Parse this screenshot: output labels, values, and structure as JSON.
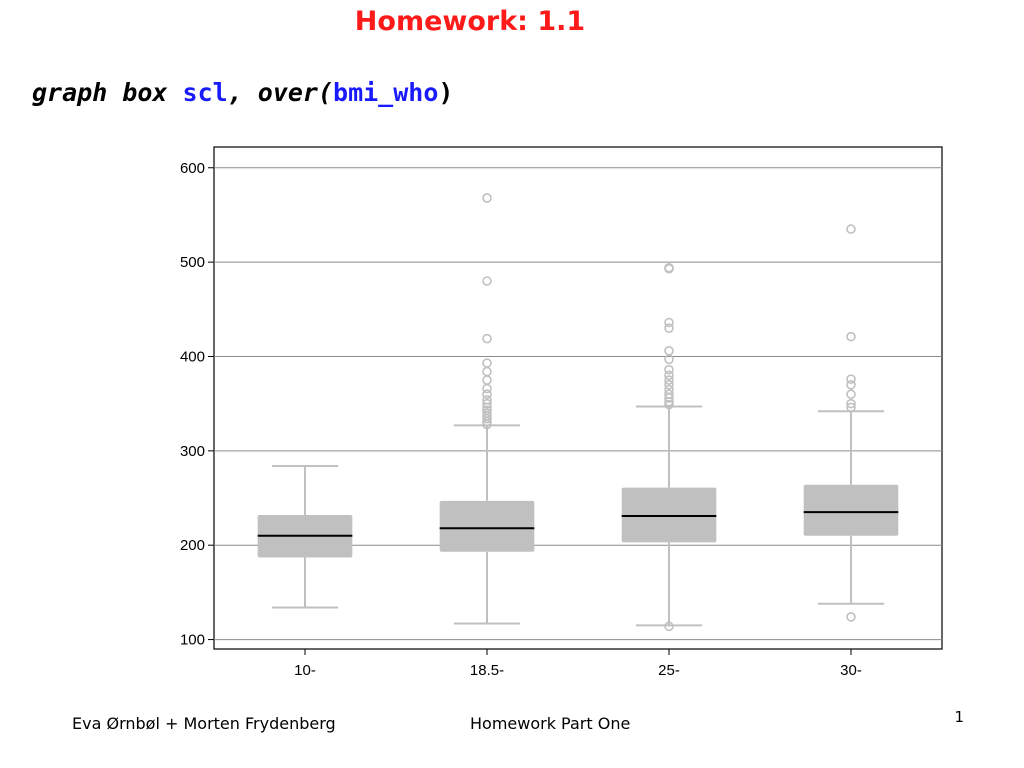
{
  "slide": {
    "title": "Homework: 1.1",
    "command": {
      "part1": "graph box ",
      "var": "scl",
      "part2": ", over(",
      "group": "bmi_who",
      "part3": ")"
    },
    "footer_left": "Eva Ørnbøl + Morten Frydenberg",
    "footer_center": "Homework Part One",
    "page_number": "1"
  },
  "colors": {
    "title": "#ff1a1a",
    "keyword": "#1a1aff",
    "box_fill": "#c0c0c0",
    "median": "#000000",
    "gridline": "#8c8c8c"
  },
  "chart_data": {
    "type": "box",
    "categories": [
      "10-",
      "18.5-",
      "25-",
      "30-"
    ],
    "y_ticks": [
      100,
      200,
      300,
      400,
      500,
      600
    ],
    "ylim": [
      90,
      622
    ],
    "grid": true,
    "boxes": [
      {
        "category": "10-",
        "whisker_low": 134,
        "q1": 187,
        "median": 210,
        "q3": 232,
        "whisker_high": 284,
        "outliers": []
      },
      {
        "category": "18.5-",
        "whisker_low": 117,
        "q1": 193,
        "median": 218,
        "q3": 247,
        "whisker_high": 327,
        "outliers": [
          328,
          331,
          334,
          337,
          340,
          343,
          346,
          350,
          354,
          360,
          366,
          375,
          384,
          393,
          419,
          480,
          568
        ]
      },
      {
        "category": "25-",
        "whisker_low": 115,
        "q1": 203,
        "median": 231,
        "q3": 261,
        "whisker_high": 347,
        "outliers": [
          114,
          349,
          352,
          356,
          360,
          365,
          370,
          375,
          380,
          386,
          397,
          406,
          430,
          436,
          493,
          494
        ]
      },
      {
        "category": "30-",
        "whisker_low": 138,
        "q1": 210,
        "median": 235,
        "q3": 264,
        "whisker_high": 342,
        "outliers": [
          124,
          346,
          350,
          360,
          370,
          376,
          421,
          535
        ]
      }
    ]
  }
}
